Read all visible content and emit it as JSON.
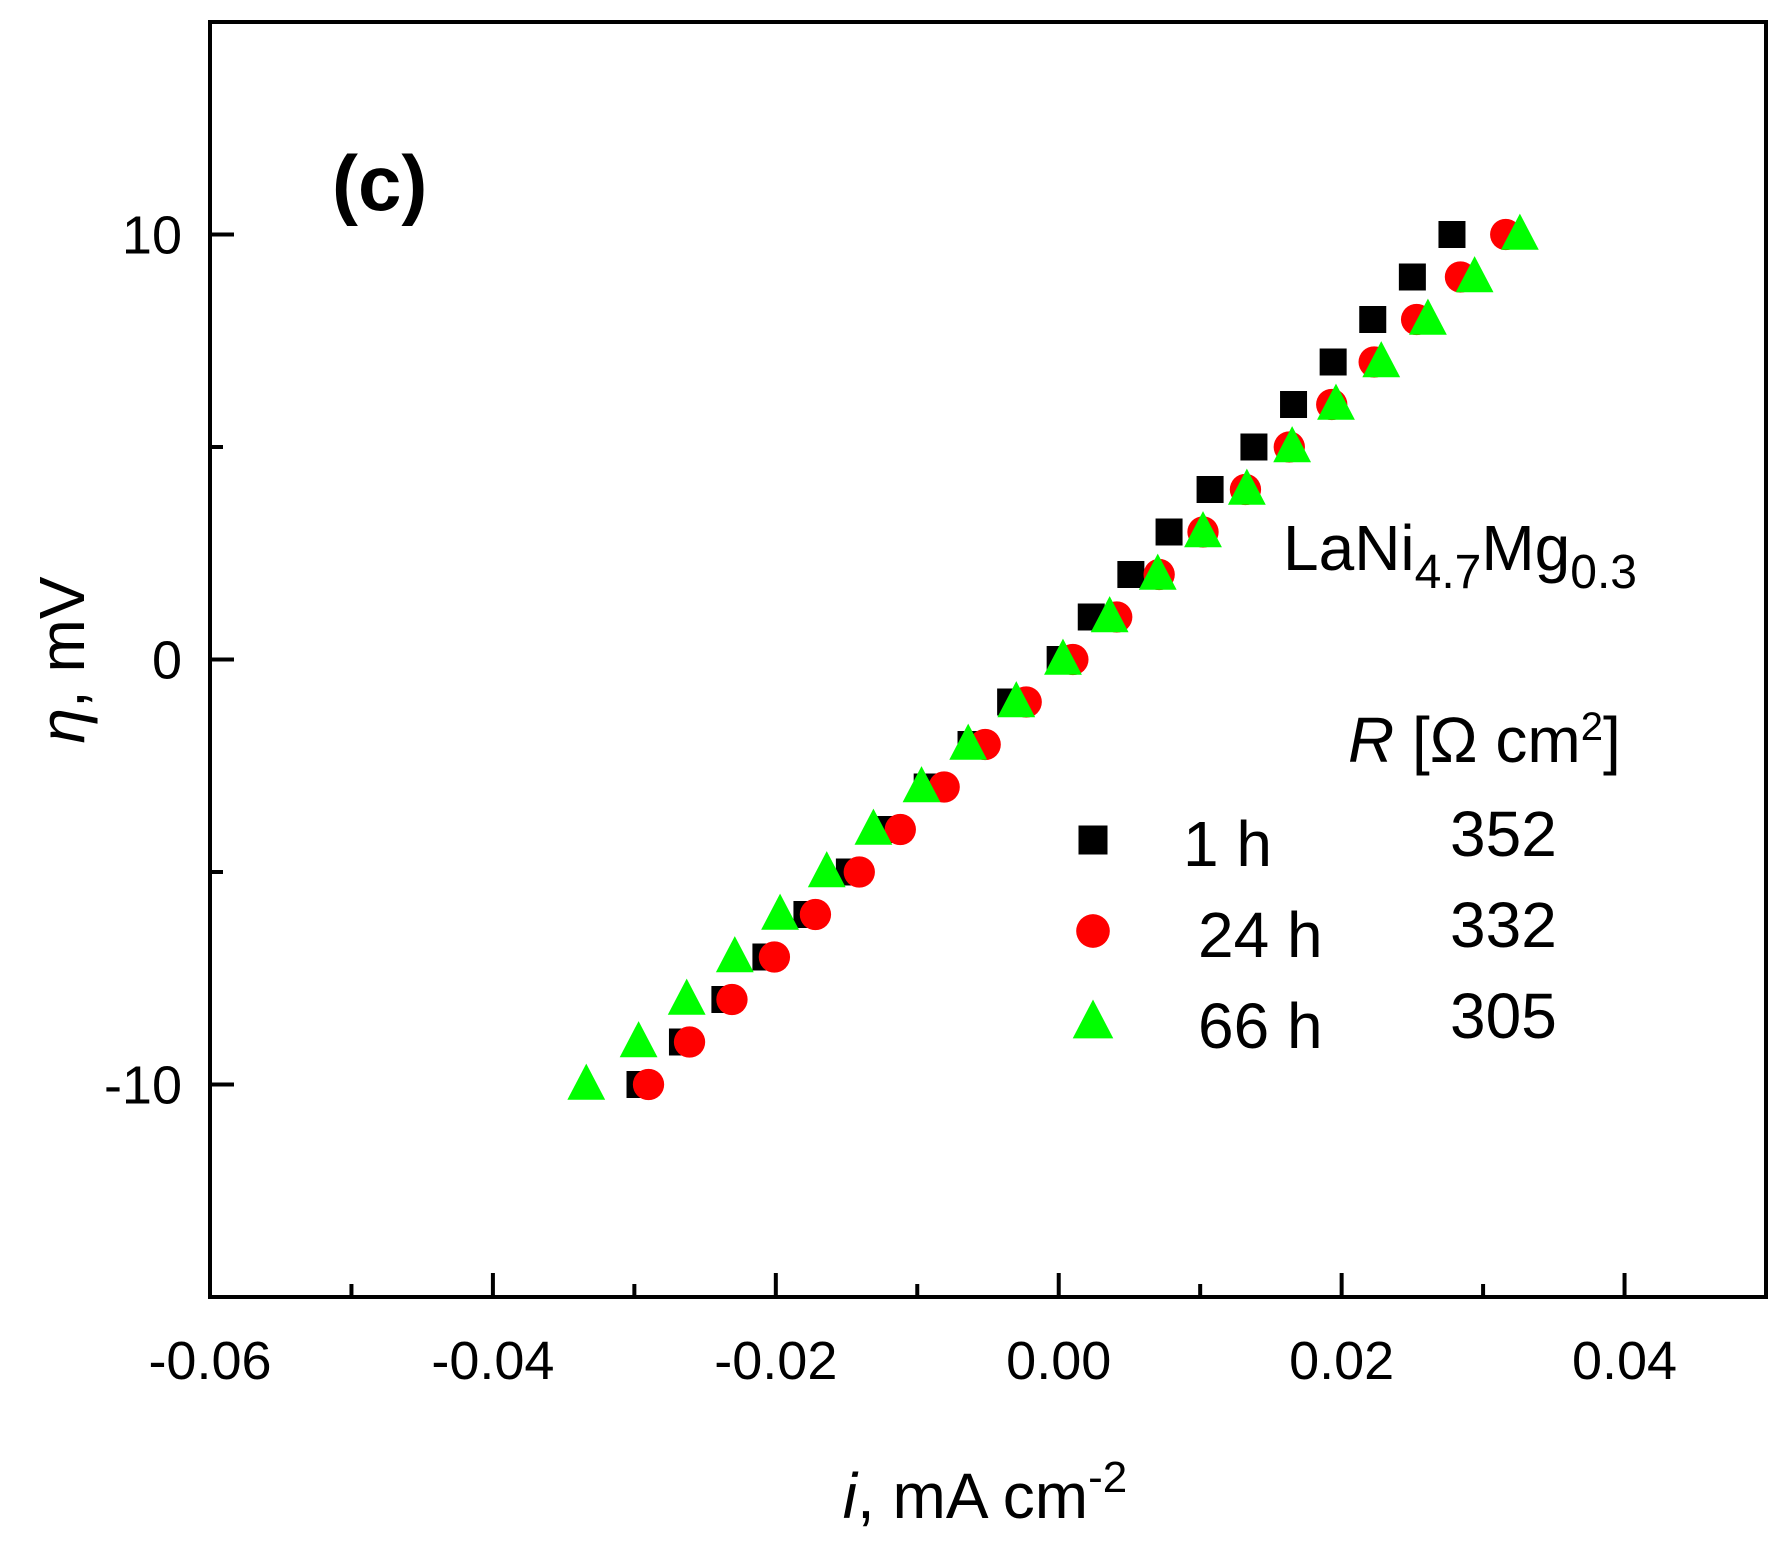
{
  "chart_data": {
    "type": "scatter",
    "panel_label": "(c)",
    "annotation": {
      "base": "LaNi",
      "sub1": "4.7",
      "mid": "Mg",
      "sub2": "0.3"
    },
    "xlabel": {
      "italic": "i",
      "rest": ", mA cm",
      "sup": "-2"
    },
    "ylabel": {
      "italic": "η",
      "rest": ", mV"
    },
    "xlim": [
      -0.06,
      0.05
    ],
    "ylim": [
      -15,
      15
    ],
    "x_ticks": [
      -0.06,
      -0.04,
      -0.02,
      0.0,
      0.02,
      0.04
    ],
    "x_tick_labels": [
      "-0.06",
      "-0.04",
      "-0.02",
      "0.00",
      "0.02",
      "0.04"
    ],
    "x_minor_ticks": [
      -0.05,
      -0.03,
      -0.01,
      0.01,
      0.03
    ],
    "y_ticks": [
      -10,
      0,
      10
    ],
    "y_tick_labels": [
      "-10",
      "0",
      "10"
    ],
    "y_minor_ticks": [
      -5,
      5
    ],
    "legend_header": {
      "italic": "R",
      "rest": " [Ω cm",
      "sup": "2",
      "close": "]"
    },
    "series": [
      {
        "name": "1 h",
        "r_value": "352",
        "marker": "square",
        "color": "#000000",
        "y": [
          -10,
          -9,
          -8,
          -7,
          -6,
          -5,
          -4,
          -3,
          -2,
          -1,
          0,
          1,
          2,
          3,
          4,
          5,
          6,
          7,
          8,
          9,
          10
        ],
        "x": [
          -0.0296,
          -0.0266,
          -0.0236,
          -0.0207,
          -0.0178,
          -0.0148,
          -0.0124,
          -0.0093,
          -0.0062,
          -0.0034,
          0.0001,
          0.0023,
          0.0051,
          0.0078,
          0.0107,
          0.0138,
          0.0166,
          0.0194,
          0.0222,
          0.025,
          0.0278
        ]
      },
      {
        "name": "24 h",
        "r_value": "332",
        "marker": "circle",
        "color": "#ff0000",
        "y": [
          -10,
          -9,
          -8,
          -7,
          -6,
          -5,
          -4,
          -3,
          -2,
          -1,
          0,
          1,
          2,
          3,
          4,
          5,
          6,
          7,
          8,
          9,
          10
        ],
        "x": [
          -0.029,
          -0.0261,
          -0.0231,
          -0.0201,
          -0.0172,
          -0.0141,
          -0.0112,
          -0.0081,
          -0.0052,
          -0.0023,
          0.001,
          0.0041,
          0.0071,
          0.0102,
          0.0132,
          0.0163,
          0.0193,
          0.0223,
          0.0253,
          0.0284,
          0.0316
        ]
      },
      {
        "name": "66 h",
        "r_value": "305",
        "marker": "triangle",
        "color": "#00ff00",
        "y": [
          -10,
          -9,
          -8,
          -7,
          -6,
          -5,
          -4,
          -3,
          -2,
          -1,
          0,
          1,
          2,
          3,
          4,
          5,
          6,
          7,
          8,
          9,
          10
        ],
        "x": [
          -0.0334,
          -0.0297,
          -0.0263,
          -0.0229,
          -0.0197,
          -0.0164,
          -0.0131,
          -0.0097,
          -0.0064,
          -0.003,
          0.0003,
          0.0036,
          0.007,
          0.0102,
          0.0133,
          0.0165,
          0.0196,
          0.0228,
          0.0261,
          0.0294,
          0.0326
        ]
      }
    ]
  }
}
